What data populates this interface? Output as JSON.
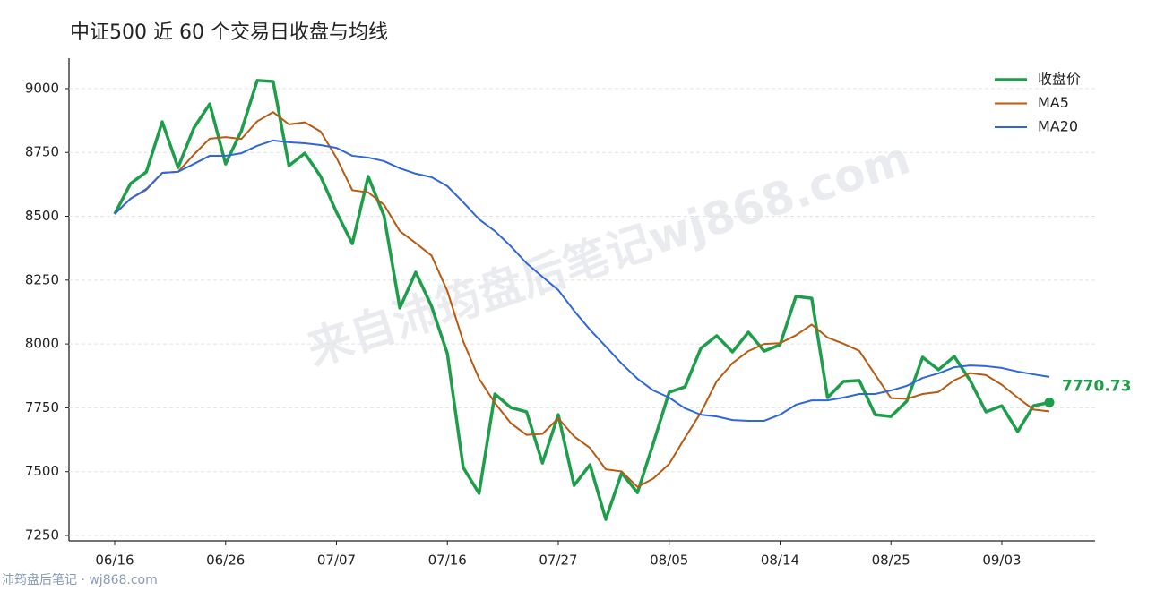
{
  "chart_data": {
    "type": "line",
    "title": "中证500 近 60 个交易日收盘与均线",
    "watermark": "来自沛筠盘后笔记wj868.com",
    "footer": "沛筠盘后笔记 · wj868.com",
    "categories": [
      "06/16",
      null,
      null,
      null,
      null,
      null,
      null,
      "06/26",
      null,
      null,
      null,
      null,
      null,
      null,
      "07/07",
      null,
      null,
      null,
      null,
      null,
      null,
      "07/16",
      null,
      null,
      null,
      null,
      null,
      null,
      "07/27",
      null,
      null,
      null,
      null,
      null,
      null,
      "08/05",
      null,
      null,
      null,
      null,
      null,
      null,
      "08/14",
      null,
      null,
      null,
      null,
      null,
      null,
      "08/25",
      null,
      null,
      null,
      null,
      null,
      null,
      "09/03",
      null,
      null,
      null
    ],
    "series": [
      {
        "name": "收盘价",
        "color": "#1e9e4a",
        "width": 3.5,
        "values": [
          8509,
          8628,
          8674,
          8870,
          8691,
          8846,
          8940,
          8705,
          8835,
          9032,
          9028,
          8698,
          8747,
          8656,
          8516,
          8393,
          8656,
          8502,
          8141,
          8281,
          8148,
          7962,
          7516,
          7415,
          7804,
          7751,
          7734,
          7534,
          7723,
          7446,
          7527,
          7313,
          7495,
          7418,
          7611,
          7811,
          7832,
          7983,
          8032,
          7969,
          8046,
          7972,
          7997,
          8186,
          8179,
          7790,
          7853,
          7857,
          7723,
          7716,
          7776,
          7948,
          7899,
          7951,
          7857,
          7734,
          7758,
          7657,
          7758,
          7770.73
        ],
        "value_labels": [
          null,
          null,
          null,
          null,
          null,
          null,
          null,
          null,
          null,
          null,
          null,
          null,
          null,
          null,
          null,
          null,
          null,
          null,
          null,
          null,
          null,
          null,
          null,
          null,
          null,
          null,
          null,
          null,
          null,
          null,
          null,
          null,
          null,
          null,
          null,
          null,
          null,
          null,
          null,
          null,
          null,
          null,
          null,
          null,
          null,
          null,
          null,
          null,
          null,
          null,
          null,
          null,
          null,
          null,
          null,
          null,
          null,
          null,
          null,
          "7770.73"
        ]
      },
      {
        "name": "MA5",
        "color": "#b85a10",
        "width": 2,
        "values": [
          8509,
          8569,
          8604,
          8670,
          8674,
          8742,
          8804,
          8810,
          8803,
          8872,
          8908,
          8860,
          8868,
          8832,
          8729,
          8602,
          8594,
          8545,
          8442,
          8395,
          8346,
          8207,
          8010,
          7864,
          7769,
          7690,
          7644,
          7648,
          7709,
          7638,
          7593,
          7509,
          7501,
          7440,
          7473,
          7530,
          7633,
          7731,
          7854,
          7925,
          7972,
          8000,
          8003,
          8034,
          8076,
          8025,
          8001,
          7973,
          7880,
          7788,
          7785,
          7804,
          7812,
          7858,
          7886,
          7878,
          7840,
          7790,
          7743,
          7736
        ]
      },
      {
        "name": "MA20",
        "color": "#2f66dd",
        "width": 2,
        "values": [
          8509,
          8569,
          8607,
          8670,
          8674,
          8705,
          8737,
          8737,
          8747,
          8776,
          8797,
          8790,
          8786,
          8779,
          8768,
          8737,
          8730,
          8716,
          8688,
          8667,
          8653,
          8618,
          8555,
          8488,
          8442,
          8383,
          8316,
          8263,
          8211,
          8130,
          8056,
          7990,
          7923,
          7864,
          7818,
          7790,
          7748,
          7723,
          7716,
          7702,
          7699,
          7699,
          7723,
          7762,
          7779,
          7779,
          7790,
          7804,
          7804,
          7818,
          7836,
          7867,
          7885,
          7909,
          7916,
          7913,
          7906,
          7892,
          7881,
          7871
        ]
      }
    ],
    "ylim": [
      7229,
      9119
    ],
    "yticks": [
      7250,
      7500,
      7750,
      8000,
      8250,
      8500,
      8750,
      9000
    ],
    "grid": true,
    "legend": "upper right"
  }
}
